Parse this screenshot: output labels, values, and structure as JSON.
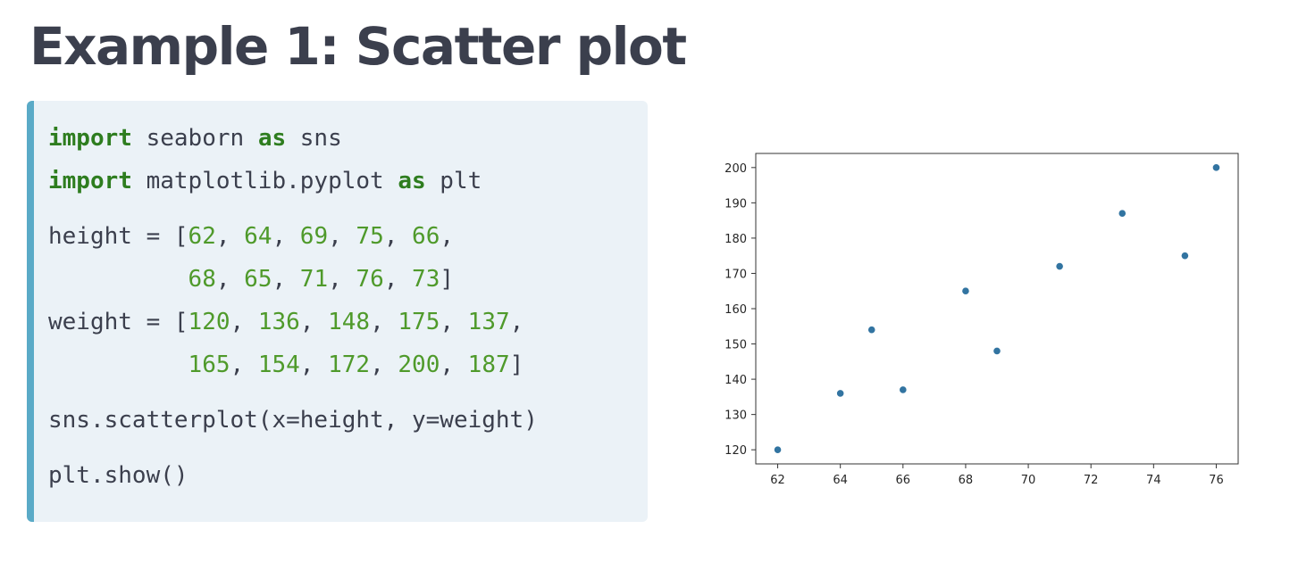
{
  "title": "Example 1: Scatter plot",
  "code": {
    "line1": {
      "kw1": "import",
      "rest1": " seaborn ",
      "kw2": "as",
      "rest2": " sns"
    },
    "line2": {
      "kw1": "import",
      "rest1": " matplotlib.pyplot ",
      "kw2": "as",
      "rest2": " plt"
    },
    "height": {
      "prefix": "height = [",
      "row1": [
        "62",
        "64",
        "69",
        "75",
        "66"
      ],
      "row2": [
        "68",
        "65",
        "71",
        "76",
        "73"
      ]
    },
    "weight": {
      "prefix": "weight = [",
      "row1": [
        "120",
        "136",
        "148",
        "175",
        "137"
      ],
      "row2": [
        "165",
        "154",
        "172",
        "200",
        "187"
      ]
    },
    "sep": ", ",
    "trail": ",",
    "close": "]",
    "scatter_call": "sns.scatterplot(x=height, y=weight)",
    "show_call": "plt.show()"
  },
  "colors": {
    "title": "#3b3f4d",
    "code_bg": "#ebf2f7",
    "code_accent": "#5aaac7",
    "keyword": "#2e7d1f",
    "number": "#4f9a2b",
    "marker": "#3274a1"
  },
  "chart_data": {
    "type": "scatter",
    "x": [
      62,
      64,
      69,
      75,
      66,
      68,
      65,
      71,
      76,
      73
    ],
    "y": [
      120,
      136,
      148,
      175,
      137,
      165,
      154,
      172,
      200,
      187
    ],
    "xlim": [
      61.3,
      76.7
    ],
    "ylim": [
      116,
      204
    ],
    "xticks": [
      62,
      64,
      66,
      68,
      70,
      72,
      74,
      76
    ],
    "yticks": [
      120,
      130,
      140,
      150,
      160,
      170,
      180,
      190,
      200
    ],
    "grid": false
  }
}
